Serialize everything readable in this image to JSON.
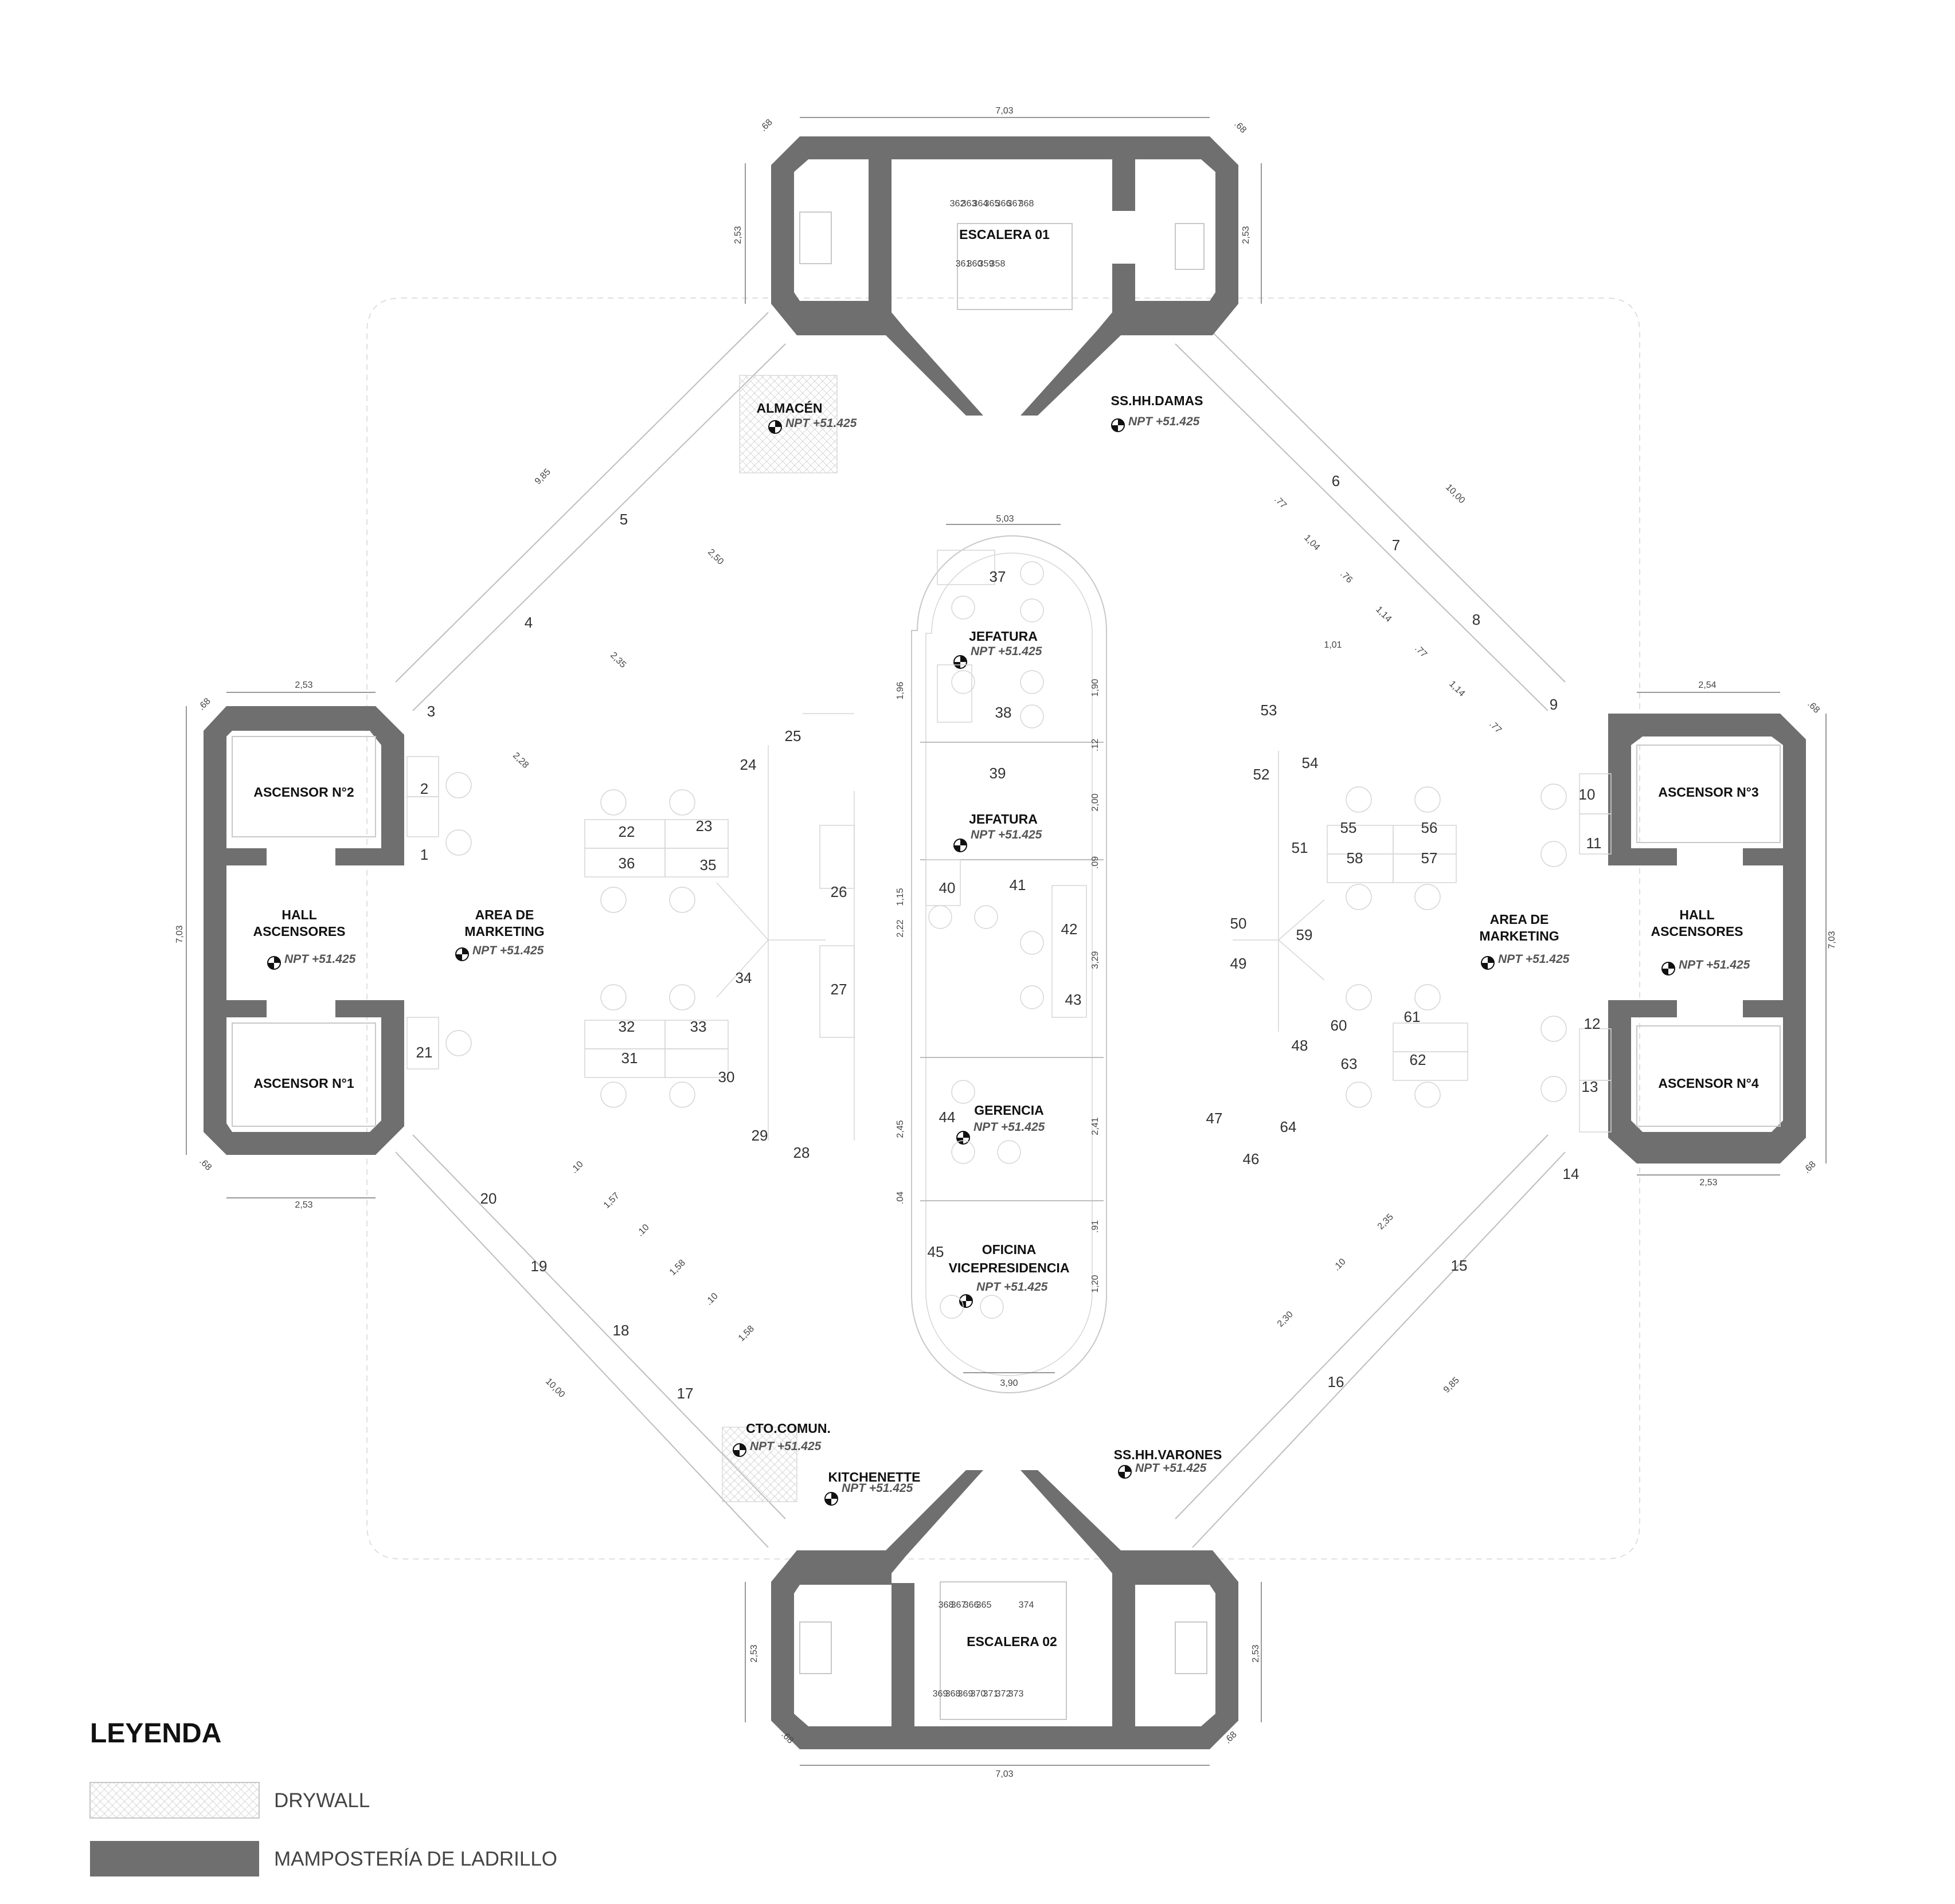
{
  "rooms": {
    "escalera_01": "ESCALERA 01",
    "escalera_02": "ESCALERA 02",
    "almacen": "ALMACÉN",
    "sshh_damas": "SS.HH.DAMAS",
    "sshh_varones": "SS.HH.VARONES",
    "ascensor_1": "ASCENSOR N°1",
    "ascensor_2": "ASCENSOR N°2",
    "ascensor_3": "ASCENSOR N°3",
    "ascensor_4": "ASCENSOR N°4",
    "hall_left": [
      "HALL",
      "ASCENSORES"
    ],
    "hall_right": [
      "HALL",
      "ASCENSORES"
    ],
    "marketing_left": [
      "AREA DE",
      "MARKETING"
    ],
    "marketing_right": [
      "AREA DE",
      "MARKETING"
    ],
    "jefatura_1": "JEFATURA",
    "jefatura_2": "JEFATURA",
    "gerencia": "GERENCIA",
    "oficina_vp": [
      "OFICINA",
      "VICEPRESIDENCIA"
    ],
    "cto_comun": "CTO.COMUN.",
    "kitchenette": "KITCHENETTE"
  },
  "level_label": "NPT  +51.425",
  "workstations": [
    "1",
    "2",
    "3",
    "4",
    "5",
    "6",
    "7",
    "8",
    "9",
    "10",
    "11",
    "12",
    "13",
    "14",
    "15",
    "16",
    "17",
    "18",
    "19",
    "20",
    "21",
    "22",
    "23",
    "24",
    "25",
    "26",
    "27",
    "28",
    "29",
    "30",
    "31",
    "32",
    "33",
    "34",
    "35",
    "36",
    "37",
    "38",
    "39",
    "40",
    "41",
    "42",
    "43",
    "44",
    "45",
    "46",
    "47",
    "48",
    "49",
    "50",
    "51",
    "52",
    "53",
    "54",
    "55",
    "56",
    "57",
    "58",
    "59",
    "60",
    "61",
    "62",
    "63",
    "64"
  ],
  "dimensions": {
    "top_width": "7,03",
    "bottom_width": "7,03",
    "side_height": "7,03",
    "corner": ".68",
    "stair_depth": "2,53",
    "left_box": "2,53",
    "right_box": "2,54",
    "diag_a": "9,85",
    "diag_b": "10,00",
    "d_250": "2,50",
    "d_235": "2,35",
    "d_228": "2,28",
    "d_157": "1,57",
    "d_158": "1,58",
    "d_10": ".10",
    "d_77": ".77",
    "d_104": "1,04",
    "d_76": ".76",
    "d_114": "1,14",
    "d_230": "2,30",
    "d_101": "1,01",
    "d_503": "5,03",
    "d_390": "3,90",
    "d_196": "1,96",
    "d_190": "1,90",
    "d_12": ".12",
    "d_200": "2,00",
    "d_115": "1,15",
    "d_222": "2,22",
    "d_329": "3,29",
    "d_09": ".09",
    "d_245": "2,45",
    "d_241": "2,41",
    "d_04": ".04",
    "d_91": ".91",
    "d_120": "1,20"
  },
  "stair_steps": {
    "s1_top": [
      "362",
      "363",
      "364",
      "365",
      "366",
      "367",
      "368"
    ],
    "s1_bottom": [
      "361",
      "360",
      "359",
      "358",
      "",
      ""
    ],
    "s2_top": [
      "368",
      "367",
      "366",
      "365",
      "",
      "374"
    ],
    "s2_bottom": [
      "369",
      "368",
      "369",
      "370",
      "371",
      "372",
      "373"
    ]
  },
  "legend": {
    "title": "LEYENDA",
    "drywall": "DRYWALL",
    "masonry": "MAMPOSTERÍA DE LADRILLO"
  },
  "colors": {
    "masonry": "#6f6f70",
    "drywall_border": "#c8c8c8",
    "line": "#bdbdbd"
  }
}
